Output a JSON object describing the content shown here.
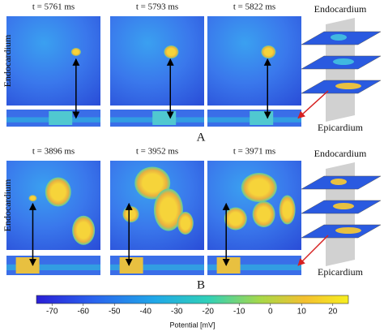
{
  "panels": [
    {
      "letter": "A",
      "times": [
        "t = 5761 ms",
        "t = 5793 ms",
        "t = 5822 ms"
      ],
      "side_label": "Endocardium",
      "top_label": "Endocardium",
      "bottom_label": "Epicardium"
    },
    {
      "letter": "B",
      "times": [
        "t = 3896 ms",
        "t = 3952 ms",
        "t = 3971 ms"
      ],
      "side_label": "Endocardium",
      "top_label": "Endocardium",
      "bottom_label": "Epicardium"
    }
  ],
  "colorbar": {
    "label": "Potential [mV]",
    "lim": [
      -75,
      25
    ],
    "ticks": [
      -70,
      -60,
      -50,
      -40,
      -30,
      -20,
      -10,
      0,
      10,
      20
    ]
  }
}
